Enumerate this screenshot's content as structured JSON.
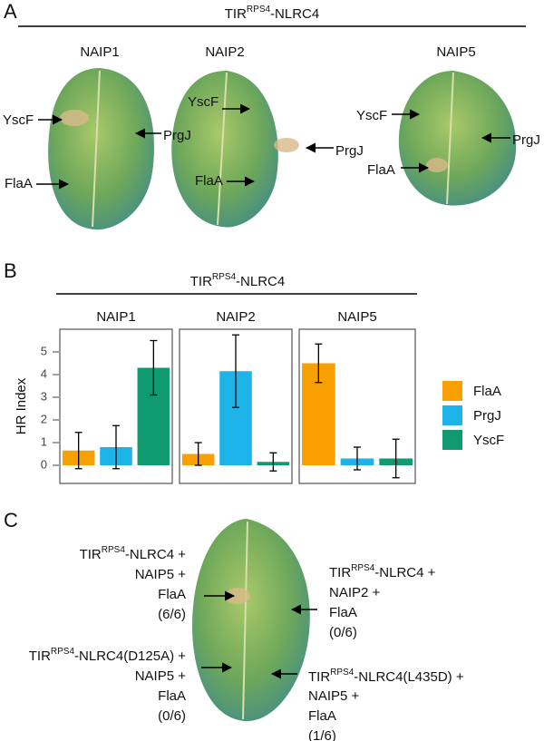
{
  "panel_a": {
    "letter": "A",
    "title": {
      "base": "TIR",
      "sup": "RPS4",
      "rest": "-NLRC4"
    },
    "leaves": [
      {
        "label": "NAIP1",
        "arrows": [
          "YscF",
          "PrgJ",
          "FlaA"
        ]
      },
      {
        "label": "NAIP2",
        "arrows": [
          "YscF",
          "PrgJ",
          "FlaA"
        ]
      },
      {
        "label": "NAIP5",
        "arrows": [
          "YscF",
          "PrgJ",
          "FlaA"
        ]
      }
    ]
  },
  "chart_data": {
    "type": "bar",
    "letter": "B",
    "title": {
      "base": "TIR",
      "sup": "RPS4",
      "rest": "-NLRC4"
    },
    "facets": [
      "NAIP1",
      "NAIP2",
      "NAIP5"
    ],
    "series": [
      {
        "name": "FlaA",
        "color": "#f8a000",
        "values": [
          0.65,
          0.5,
          4.5
        ],
        "errors": [
          0.8,
          0.5,
          0.85
        ]
      },
      {
        "name": "PrgJ",
        "color": "#1cb4e8",
        "values": [
          0.8,
          4.15,
          0.3
        ],
        "errors": [
          0.95,
          1.6,
          0.5
        ]
      },
      {
        "name": "YscF",
        "color": "#0f9a70",
        "values": [
          4.3,
          0.15,
          0.3
        ],
        "errors": [
          1.2,
          0.4,
          0.85
        ]
      }
    ],
    "ylabel": "HR Index",
    "ylim": [
      -0.8,
      6
    ],
    "yticks": [
      0,
      1,
      2,
      3,
      4,
      5
    ],
    "legend": "right"
  },
  "panel_c": {
    "letter": "C",
    "labels": [
      {
        "construct": {
          "base": "TIR",
          "sup": "RPS4",
          "rest": "-NLRC4 +"
        },
        "lines": [
          "NAIP5 +",
          "FlaA",
          "(6/6)"
        ]
      },
      {
        "construct": {
          "base": "TIR",
          "sup": "RPS4",
          "rest": "-NLRC4 +"
        },
        "lines": [
          "NAIP2 +",
          "FlaA",
          "(0/6)"
        ]
      },
      {
        "construct": {
          "base": "TIR",
          "sup": "RPS4",
          "rest": "-NLRC4(D125A) +"
        },
        "lines": [
          "NAIP5 +",
          "FlaA",
          "(0/6)"
        ]
      },
      {
        "construct": {
          "base": "TIR",
          "sup": "RPS4",
          "rest": "-NLRC4(L435D) +"
        },
        "lines": [
          "NAIP5 +",
          "FlaA",
          "(1/6)"
        ]
      }
    ]
  }
}
